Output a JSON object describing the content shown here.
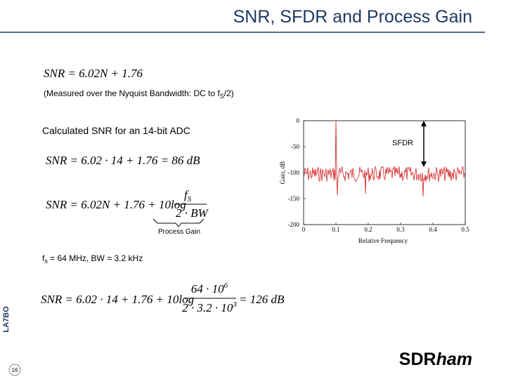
{
  "header": {
    "title": "SNR, SFDR and Process Gain"
  },
  "equation1": "SNR = 6.02N + 1.76",
  "note": {
    "text": "(Measured over the Nyquist Bandwidth: DC to f",
    "sub": "S",
    "end": "/2)"
  },
  "calc_heading": "Calculated SNR for an 14-bit ADC",
  "equation2": "SNR = 6.02 · 14 + 1.76 = 86  dB",
  "equation3": {
    "lhs": "SNR = 6.02N + 1.76 + 10log",
    "numerator": "f",
    "numerator_sub": "S",
    "denominator": "2 · BW"
  },
  "process_gain_label": "Process Gain",
  "params": {
    "f": "f",
    "sub": "s",
    "text": " = 64 MHz, BW = 3.2 kHz"
  },
  "equation4": {
    "lhs": "SNR = 6.02 · 14 + 1.76 + 10log",
    "numerator": "64 · 10",
    "numerator_exp": "6",
    "denominator": "2 · 3.2 · 10",
    "denominator_exp": "3",
    "rhs": "= 126  dB"
  },
  "figure": {
    "y_label": "Gain, dB",
    "x_label": "Relative Frequency",
    "sfdr_label": "SFDR",
    "yticks": [
      "0",
      "-50",
      "-100",
      "-150",
      "-200"
    ],
    "xticks": [
      "0",
      "0.1",
      "0.2",
      "0.3",
      "0.4",
      "0.5"
    ]
  },
  "footer": {
    "side_label": "LA7BO",
    "page_number": "16",
    "logo": "SDR",
    "logo_italic": "ham"
  }
}
